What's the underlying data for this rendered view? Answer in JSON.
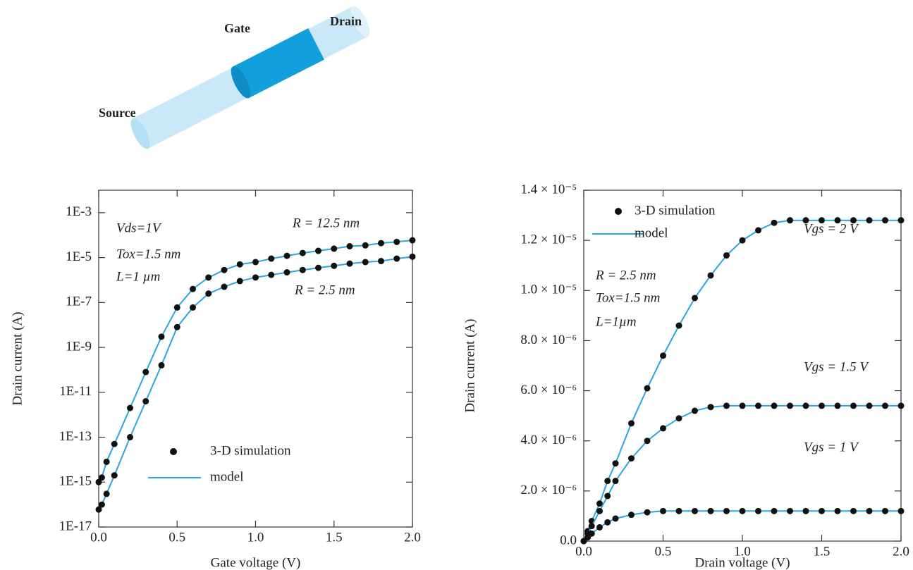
{
  "diagram": {
    "labels": [
      "Gate",
      "Drain",
      "Source"
    ]
  },
  "chart_data": [
    {
      "type": "line",
      "markers": true,
      "log_y": true,
      "x_label": "Gate voltage (V)",
      "y_label": "Drain current (A)",
      "xlim": [
        0,
        2
      ],
      "ylim": [
        1e-17,
        0.01
      ],
      "xticks": [
        {
          "value": 0,
          "label": "0.0"
        },
        0.5,
        {
          "value": 1,
          "label": "1.0"
        },
        1.5,
        {
          "value": 2,
          "label": "2.0"
        }
      ],
      "yticks": [
        {
          "value": 0.001,
          "label": "1E-3"
        },
        {
          "value": 1e-05,
          "label": "1E-5"
        },
        {
          "value": 1e-07,
          "label": "1E-7"
        },
        {
          "value": 1e-09,
          "label": "1E-9"
        },
        {
          "value": 1e-11,
          "label": "1E-11"
        },
        {
          "value": 1e-13,
          "label": "1E-13"
        },
        {
          "value": 1e-15,
          "label": "1E-15"
        },
        {
          "value": 1e-17,
          "label": "1E-17"
        }
      ],
      "legend": {
        "markers": "3-D simulation",
        "line": "model"
      },
      "marker_color": "#111111",
      "annotations": [
        "Vds=1V",
        "Tox=1.5 nm",
        "L=1 µm"
      ],
      "x": [
        0,
        0.02,
        0.05,
        0.1,
        0.2,
        0.3,
        0.4,
        0.5,
        0.6,
        0.7,
        0.8,
        0.9,
        1.0,
        1.1,
        1.2,
        1.3,
        1.4,
        1.5,
        1.6,
        1.7,
        1.8,
        1.9,
        2.0
      ],
      "series": [
        {
          "name": "R = 12.5 nm",
          "color": "#29a6dd",
          "values": [
            1e-15,
            1.6e-15,
            8e-15,
            5e-14,
            2e-12,
            8e-11,
            3e-09,
            6e-08,
            4e-07,
            1.3e-06,
            2.8e-06,
            5e-06,
            6.3e-06,
            9e-06,
            1.2e-05,
            1.6e-05,
            2e-05,
            2.5e-05,
            3.2e-05,
            3.5e-05,
            4.4e-05,
            5e-05,
            5.9e-05
          ]
        },
        {
          "name": "R = 2.5 nm",
          "color": "#29a6dd",
          "values": [
            6e-17,
            1e-16,
            3e-16,
            2e-15,
            1e-13,
            4e-12,
            1.6e-10,
            8e-09,
            6e-08,
            2.5e-07,
            5e-07,
            9e-07,
            1.3e-06,
            1.7e-06,
            2.2e-06,
            2.8e-06,
            3.5e-06,
            4.3e-06,
            5.4e-06,
            6.3e-06,
            7e-06,
            9e-06,
            1.1e-05
          ]
        }
      ]
    },
    {
      "type": "line",
      "markers": true,
      "log_y": false,
      "x_label": "Drain voltage (V)",
      "y_label": "Drain current (A)",
      "xlim": [
        0,
        2
      ],
      "ylim": [
        0,
        1.4e-05
      ],
      "xticks": [
        {
          "value": 0,
          "label": "0.0"
        },
        0.5,
        {
          "value": 1,
          "label": "1.0"
        },
        1.5,
        {
          "value": 2,
          "label": "2.0"
        }
      ],
      "yticks": [
        {
          "value": 0,
          "label": "0.0"
        },
        {
          "value": 2e-06,
          "label": "2.0 × 10⁻⁶"
        },
        {
          "value": 4e-06,
          "label": "4.0 × 10⁻⁶"
        },
        {
          "value": 6e-06,
          "label": "6.0 × 10⁻⁶"
        },
        {
          "value": 8e-06,
          "label": "8.0 × 10⁻⁶"
        },
        {
          "value": 1e-05,
          "label": "1.0 × 10⁻⁵"
        },
        {
          "value": 1.2e-05,
          "label": "1.2 × 10⁻⁵"
        },
        {
          "value": 1.4e-05,
          "label": "1.4 × 10⁻⁵"
        }
      ],
      "legend": {
        "markers": "3-D simulation",
        "line": "model"
      },
      "marker_color": "#111111",
      "annotations": [
        "R = 2.5 nm",
        "Tox=1.5 nm",
        "L=1µm"
      ],
      "x": [
        0,
        0.025,
        0.05,
        0.1,
        0.15,
        0.2,
        0.3,
        0.4,
        0.5,
        0.6,
        0.7,
        0.8,
        0.9,
        1.0,
        1.1,
        1.2,
        1.3,
        1.4,
        1.5,
        1.6,
        1.7,
        1.8,
        1.9,
        2.0
      ],
      "series": [
        {
          "name": "Vgs = 2 V",
          "color": "#29a6dd",
          "values": [
            0,
            4e-07,
            8e-07,
            1.5e-06,
            2.4e-06,
            3.1e-06,
            4.7e-06,
            6.1e-06,
            7.4e-06,
            8.6e-06,
            9.7e-06,
            1.06e-05,
            1.14e-05,
            1.2e-05,
            1.24e-05,
            1.27e-05,
            1.28e-05,
            1.28e-05,
            1.28e-05,
            1.28e-05,
            1.28e-05,
            1.28e-05,
            1.28e-05,
            1.28e-05
          ]
        },
        {
          "name": "Vgs = 1.5 V",
          "color": "#29a6dd",
          "values": [
            0,
            3e-07,
            6e-07,
            1.2e-06,
            1.8e-06,
            2.4e-06,
            3.3e-06,
            4e-06,
            4.5e-06,
            4.9e-06,
            5.2e-06,
            5.35e-06,
            5.4e-06,
            5.4e-06,
            5.4e-06,
            5.4e-06,
            5.4e-06,
            5.4e-06,
            5.4e-06,
            5.4e-06,
            5.4e-06,
            5.4e-06,
            5.4e-06,
            5.4e-06
          ]
        },
        {
          "name": "Vgs = 1 V",
          "color": "#29a6dd",
          "values": [
            0,
            1.5e-07,
            3e-07,
            5.5e-07,
            7.5e-07,
            9e-07,
            1.05e-06,
            1.15e-06,
            1.2e-06,
            1.2e-06,
            1.2e-06,
            1.2e-06,
            1.2e-06,
            1.2e-06,
            1.2e-06,
            1.2e-06,
            1.2e-06,
            1.2e-06,
            1.2e-06,
            1.2e-06,
            1.2e-06,
            1.2e-06,
            1.2e-06,
            1.2e-06
          ]
        }
      ]
    }
  ]
}
